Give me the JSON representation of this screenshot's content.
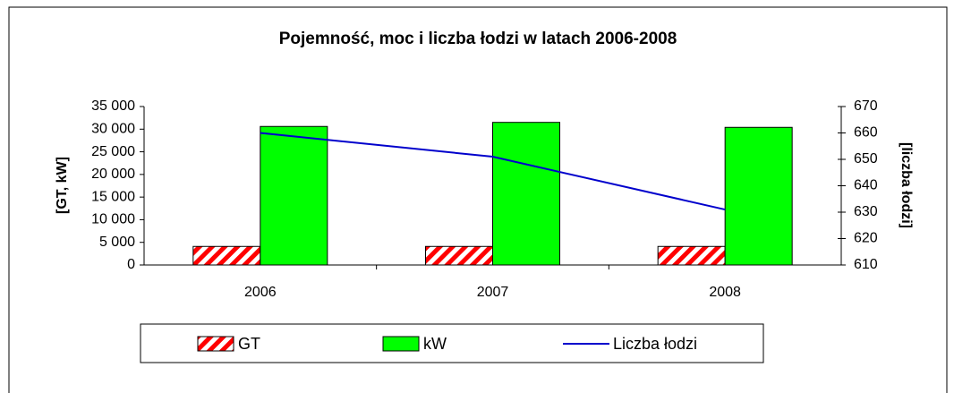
{
  "chart_data": {
    "type": "bar",
    "title": "Pojemność, moc i liczba łodzi w latach 2006-2008",
    "ylabel": "[GT, kW]",
    "y2label": "[liczba łodzi]",
    "categories": [
      "2006",
      "2007",
      "2008"
    ],
    "series": [
      {
        "name": "GT",
        "type": "bar",
        "color": "#ff0000",
        "pattern": "hatch",
        "values": [
          4100,
          4100,
          4100
        ]
      },
      {
        "name": "kW",
        "type": "bar",
        "color": "#00ff00",
        "values": [
          30600,
          31500,
          30400
        ]
      },
      {
        "name": "Liczba łodzi",
        "type": "line",
        "axis": "y2",
        "color": "#0000cc",
        "values": [
          660,
          651,
          631
        ]
      }
    ],
    "ylim": [
      0,
      35000
    ],
    "yticks": [
      0,
      {
        "value": 5000,
        "label": "5 000"
      },
      {
        "value": 10000,
        "label": "10 000"
      },
      {
        "value": 15000,
        "label": "15 000"
      },
      {
        "value": 20000,
        "label": "20 000"
      },
      {
        "value": 25000,
        "label": "25 000"
      },
      {
        "value": 30000,
        "label": "30 000"
      },
      {
        "value": 35000,
        "label": "35 000"
      }
    ],
    "y2lim": [
      610,
      670
    ],
    "y2ticks": [
      610,
      620,
      630,
      640,
      650,
      660,
      670
    ],
    "legend": "bottom",
    "grid": false
  }
}
